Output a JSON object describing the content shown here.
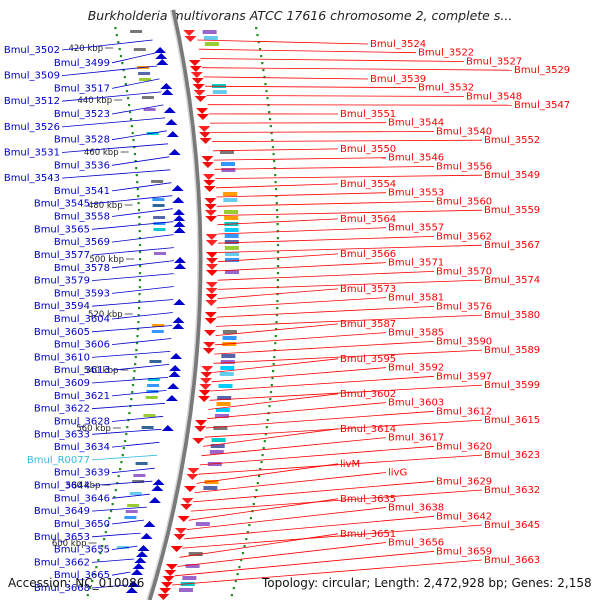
{
  "title": "Burkholderia multivorans ATCC 17616 chromosome 2, complete s...",
  "footer": {
    "accession": "Accession: NC_010086",
    "topology": "Topology: circular; Length: 2,472,928 bp; Genes: 2,158"
  },
  "colors": {
    "forward": "#ff0000",
    "reverse": "#0000cc",
    "rna": "#33bbdd",
    "backbone": "#999999",
    "gc": "#228b22"
  },
  "kbp_ticks": [
    "420 kbp",
    "440 kbp",
    "460 kbp",
    "480 kbp",
    "500 kbp",
    "520 kbp",
    "540 kbp",
    "560 kbp",
    "580 kbp",
    "600 kbp"
  ],
  "left_labels": [
    {
      "text": "Bmul_3502",
      "kind": "reverse"
    },
    {
      "text": "Bmul_3499",
      "kind": "reverse"
    },
    {
      "text": "Bmul_3509",
      "kind": "reverse"
    },
    {
      "text": "Bmul_3517",
      "kind": "reverse"
    },
    {
      "text": "Bmul_3512",
      "kind": "reverse"
    },
    {
      "text": "Bmul_3523",
      "kind": "reverse"
    },
    {
      "text": "Bmul_3526",
      "kind": "reverse"
    },
    {
      "text": "Bmul_3528",
      "kind": "reverse"
    },
    {
      "text": "Bmul_3531",
      "kind": "reverse"
    },
    {
      "text": "Bmul_3536",
      "kind": "reverse"
    },
    {
      "text": "Bmul_3543",
      "kind": "reverse"
    },
    {
      "text": "Bmul_3541",
      "kind": "reverse"
    },
    {
      "text": "Bmul_3545",
      "kind": "reverse"
    },
    {
      "text": "Bmul_3558",
      "kind": "reverse"
    },
    {
      "text": "Bmul_3565",
      "kind": "reverse"
    },
    {
      "text": "Bmul_3569",
      "kind": "reverse"
    },
    {
      "text": "Bmul_3577",
      "kind": "reverse"
    },
    {
      "text": "Bmul_3578",
      "kind": "reverse"
    },
    {
      "text": "Bmul_3579",
      "kind": "reverse"
    },
    {
      "text": "Bmul_3593",
      "kind": "reverse"
    },
    {
      "text": "Bmul_3594",
      "kind": "reverse"
    },
    {
      "text": "Bmul_3604",
      "kind": "reverse"
    },
    {
      "text": "Bmul_3605",
      "kind": "reverse"
    },
    {
      "text": "Bmul_3606",
      "kind": "reverse"
    },
    {
      "text": "Bmul_3610",
      "kind": "reverse"
    },
    {
      "text": "Bmul_3613",
      "kind": "reverse"
    },
    {
      "text": "Bmul_3609",
      "kind": "reverse"
    },
    {
      "text": "Bmul_3621",
      "kind": "reverse"
    },
    {
      "text": "Bmul_3622",
      "kind": "reverse"
    },
    {
      "text": "Bmul_3628",
      "kind": "reverse"
    },
    {
      "text": "Bmul_3633",
      "kind": "reverse"
    },
    {
      "text": "Bmul_3634",
      "kind": "reverse"
    },
    {
      "text": "Bmul_R0077",
      "kind": "rna"
    },
    {
      "text": "Bmul_3639",
      "kind": "reverse"
    },
    {
      "text": "Bmul_3644",
      "kind": "reverse"
    },
    {
      "text": "Bmul_3646",
      "kind": "reverse"
    },
    {
      "text": "Bmul_3649",
      "kind": "reverse"
    },
    {
      "text": "Bmul_3650",
      "kind": "reverse"
    },
    {
      "text": "Bmul_3653",
      "kind": "reverse"
    },
    {
      "text": "Bmul_3655",
      "kind": "reverse"
    },
    {
      "text": "Bmul_3662",
      "kind": "reverse"
    },
    {
      "text": "Bmul_3665",
      "kind": "reverse"
    },
    {
      "text": "Bmul_3668",
      "kind": "reverse"
    }
  ],
  "right_labels": [
    {
      "text": "Bmul_3524"
    },
    {
      "text": "Bmul_3522"
    },
    {
      "text": "Bmul_3527"
    },
    {
      "text": "Bmul_3529"
    },
    {
      "text": "Bmul_3539"
    },
    {
      "text": "Bmul_3532"
    },
    {
      "text": "Bmul_3548"
    },
    {
      "text": "Bmul_3547"
    },
    {
      "text": "Bmul_3551"
    },
    {
      "text": "Bmul_3544"
    },
    {
      "text": "Bmul_3540"
    },
    {
      "text": "Bmul_3552"
    },
    {
      "text": "Bmul_3550"
    },
    {
      "text": "Bmul_3546"
    },
    {
      "text": "Bmul_3556"
    },
    {
      "text": "Bmul_3549"
    },
    {
      "text": "Bmul_3554"
    },
    {
      "text": "Bmul_3553"
    },
    {
      "text": "Bmul_3560"
    },
    {
      "text": "Bmul_3559"
    },
    {
      "text": "Bmul_3564"
    },
    {
      "text": "Bmul_3557"
    },
    {
      "text": "Bmul_3562"
    },
    {
      "text": "Bmul_3567"
    },
    {
      "text": "Bmul_3566"
    },
    {
      "text": "Bmul_3571"
    },
    {
      "text": "Bmul_3570"
    },
    {
      "text": "Bmul_3574"
    },
    {
      "text": "Bmul_3573"
    },
    {
      "text": "Bmul_3581"
    },
    {
      "text": "Bmul_3576"
    },
    {
      "text": "Bmul_3580"
    },
    {
      "text": "Bmul_3587"
    },
    {
      "text": "Bmul_3585"
    },
    {
      "text": "Bmul_3590"
    },
    {
      "text": "Bmul_3589"
    },
    {
      "text": "Bmul_3595"
    },
    {
      "text": "Bmul_3592"
    },
    {
      "text": "Bmul_3597"
    },
    {
      "text": "Bmul_3599"
    },
    {
      "text": "Bmul_3602"
    },
    {
      "text": "Bmul_3603"
    },
    {
      "text": "Bmul_3612"
    },
    {
      "text": "Bmul_3615"
    },
    {
      "text": "Bmul_3614"
    },
    {
      "text": "Bmul_3617"
    },
    {
      "text": "Bmul_3620"
    },
    {
      "text": "Bmul_3623"
    },
    {
      "text": "livM"
    },
    {
      "text": "livG"
    },
    {
      "text": "Bmul_3629"
    },
    {
      "text": "Bmul_3632"
    },
    {
      "text": "Bmul_3635"
    },
    {
      "text": "Bmul_3638"
    },
    {
      "text": "Bmul_3642"
    },
    {
      "text": "Bmul_3645"
    },
    {
      "text": "Bmul_3651"
    },
    {
      "text": "Bmul_3656"
    },
    {
      "text": "Bmul_3659"
    },
    {
      "text": "Bmul_3663"
    }
  ]
}
